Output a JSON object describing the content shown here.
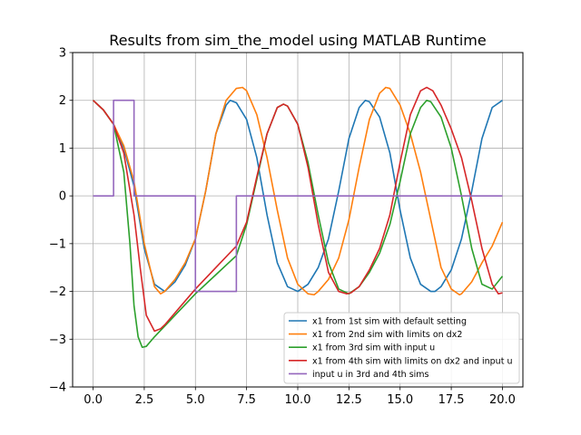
{
  "chart_data": {
    "type": "line",
    "title": "Results from sim_the_model using MATLAB Runtime",
    "xlabel": "",
    "ylabel": "",
    "xlim": [
      -1,
      21
    ],
    "ylim": [
      -4,
      3
    ],
    "xticks": [
      0.0,
      2.5,
      5.0,
      7.5,
      10.0,
      12.5,
      15.0,
      17.5,
      20.0
    ],
    "xtick_labels": [
      "0.0",
      "2.5",
      "5.0",
      "7.5",
      "10.0",
      "12.5",
      "15.0",
      "17.5",
      "20.0"
    ],
    "yticks": [
      -4,
      -3,
      -2,
      -1,
      0,
      1,
      2,
      3
    ],
    "ytick_labels": [
      "−4",
      "−3",
      "−2",
      "−1",
      "0",
      "1",
      "2",
      "3"
    ],
    "grid": true,
    "legend_position": "lower-right",
    "series": [
      {
        "name": "x1 from 1st sim with default setting",
        "color": "#1f77b4",
        "x": [
          0,
          0.5,
          1.0,
          1.5,
          2.0,
          2.5,
          3.0,
          3.5,
          4.0,
          4.5,
          5.0,
          5.5,
          6.0,
          6.5,
          6.7,
          7.0,
          7.5,
          8.0,
          8.5,
          9.0,
          9.5,
          10.0,
          10.5,
          11.0,
          11.5,
          12.0,
          12.5,
          13.0,
          13.3,
          13.5,
          14.0,
          14.5,
          15.0,
          15.5,
          16.0,
          16.5,
          16.7,
          17.0,
          17.5,
          18.0,
          18.5,
          19.0,
          19.5,
          20.0
        ],
        "y": [
          2.0,
          1.8,
          1.5,
          1.0,
          0.2,
          -1.1,
          -1.85,
          -2.0,
          -1.8,
          -1.45,
          -0.9,
          0.1,
          1.3,
          1.9,
          2.0,
          1.95,
          1.6,
          0.8,
          -0.4,
          -1.4,
          -1.9,
          -2.0,
          -1.85,
          -1.5,
          -0.9,
          0.1,
          1.2,
          1.85,
          2.0,
          1.97,
          1.65,
          0.9,
          -0.3,
          -1.3,
          -1.85,
          -2.0,
          -2.0,
          -1.9,
          -1.55,
          -0.9,
          0.1,
          1.2,
          1.85,
          2.0
        ]
      },
      {
        "name": "x1 from 2nd sim with limits on dx2",
        "color": "#ff7f0e",
        "x": [
          0,
          0.5,
          1.0,
          1.5,
          2.0,
          2.5,
          3.0,
          3.3,
          3.5,
          4.0,
          4.5,
          5.0,
          5.5,
          6.0,
          6.5,
          7.0,
          7.3,
          7.5,
          8.0,
          8.5,
          9.0,
          9.5,
          10.0,
          10.5,
          10.8,
          11.0,
          11.5,
          12.0,
          12.5,
          13.0,
          13.5,
          14.0,
          14.3,
          14.5,
          15.0,
          15.5,
          16.0,
          16.5,
          17.0,
          17.5,
          17.9,
          18.0,
          18.5,
          19.0,
          19.5,
          20.0
        ],
        "y": [
          2.0,
          1.8,
          1.5,
          1.05,
          0.3,
          -1.0,
          -1.9,
          -2.05,
          -2.0,
          -1.75,
          -1.4,
          -0.9,
          0.1,
          1.3,
          2.0,
          2.25,
          2.27,
          2.2,
          1.7,
          0.8,
          -0.3,
          -1.3,
          -1.85,
          -2.05,
          -2.07,
          -2.0,
          -1.75,
          -1.3,
          -0.5,
          0.6,
          1.6,
          2.15,
          2.27,
          2.25,
          1.9,
          1.3,
          0.5,
          -0.5,
          -1.5,
          -1.95,
          -2.07,
          -2.05,
          -1.8,
          -1.4,
          -1.05,
          -0.55
        ]
      },
      {
        "name": "x1 from 3rd sim with input u",
        "color": "#2ca02c",
        "x": [
          0,
          0.5,
          1.0,
          1.5,
          1.8,
          2.0,
          2.2,
          2.4,
          2.6,
          3.0,
          4.0,
          5.0,
          6.0,
          7.0,
          7.5,
          8.0,
          8.5,
          9.0,
          9.3,
          9.5,
          10.0,
          10.5,
          11.0,
          11.5,
          12.0,
          12.5,
          13.0,
          13.5,
          14.0,
          14.5,
          15.0,
          15.5,
          16.0,
          16.3,
          16.5,
          17.0,
          17.5,
          18.0,
          18.5,
          19.0,
          19.5,
          20.0
        ],
        "y": [
          2.0,
          1.8,
          1.5,
          0.5,
          -1.0,
          -2.3,
          -2.95,
          -3.17,
          -3.15,
          -2.95,
          -2.5,
          -2.05,
          -1.65,
          -1.25,
          -0.6,
          0.35,
          1.3,
          1.85,
          1.92,
          1.88,
          1.5,
          0.7,
          -0.4,
          -1.4,
          -1.95,
          -2.05,
          -1.9,
          -1.6,
          -1.2,
          -0.6,
          0.3,
          1.3,
          1.85,
          2.0,
          1.97,
          1.65,
          1.0,
          0.0,
          -1.1,
          -1.85,
          -1.95,
          -1.68
        ]
      },
      {
        "name": "x1 from 4th sim with limits on dx2 and input u",
        "color": "#d62728",
        "x": [
          0,
          0.5,
          1.0,
          1.5,
          2.0,
          2.3,
          2.6,
          3.0,
          3.3,
          3.5,
          4.0,
          5.0,
          6.0,
          7.0,
          7.5,
          8.0,
          8.5,
          9.0,
          9.3,
          9.5,
          10.0,
          10.5,
          11.0,
          11.5,
          12.0,
          12.4,
          12.6,
          13.0,
          13.5,
          14.0,
          14.5,
          15.0,
          15.5,
          16.0,
          16.3,
          16.6,
          17.0,
          17.5,
          18.0,
          18.5,
          19.0,
          19.5,
          19.8,
          20.0
        ],
        "y": [
          2.0,
          1.8,
          1.5,
          0.9,
          -0.4,
          -1.5,
          -2.5,
          -2.83,
          -2.78,
          -2.7,
          -2.45,
          -1.95,
          -1.5,
          -1.05,
          -0.55,
          0.4,
          1.3,
          1.85,
          1.92,
          1.88,
          1.5,
          0.6,
          -0.6,
          -1.6,
          -2.0,
          -2.05,
          -2.03,
          -1.9,
          -1.55,
          -1.1,
          -0.4,
          0.7,
          1.7,
          2.2,
          2.27,
          2.2,
          1.9,
          1.4,
          0.8,
          -0.1,
          -1.1,
          -1.85,
          -2.05,
          -2.03
        ]
      },
      {
        "name": "input u in 3rd and 4th sims",
        "color": "#9467bd",
        "x": [
          0,
          1,
          1,
          2,
          2,
          5,
          5,
          7,
          7,
          20
        ],
        "y": [
          0,
          0,
          2,
          2,
          0,
          0,
          -2,
          -2,
          0,
          0
        ]
      }
    ]
  }
}
